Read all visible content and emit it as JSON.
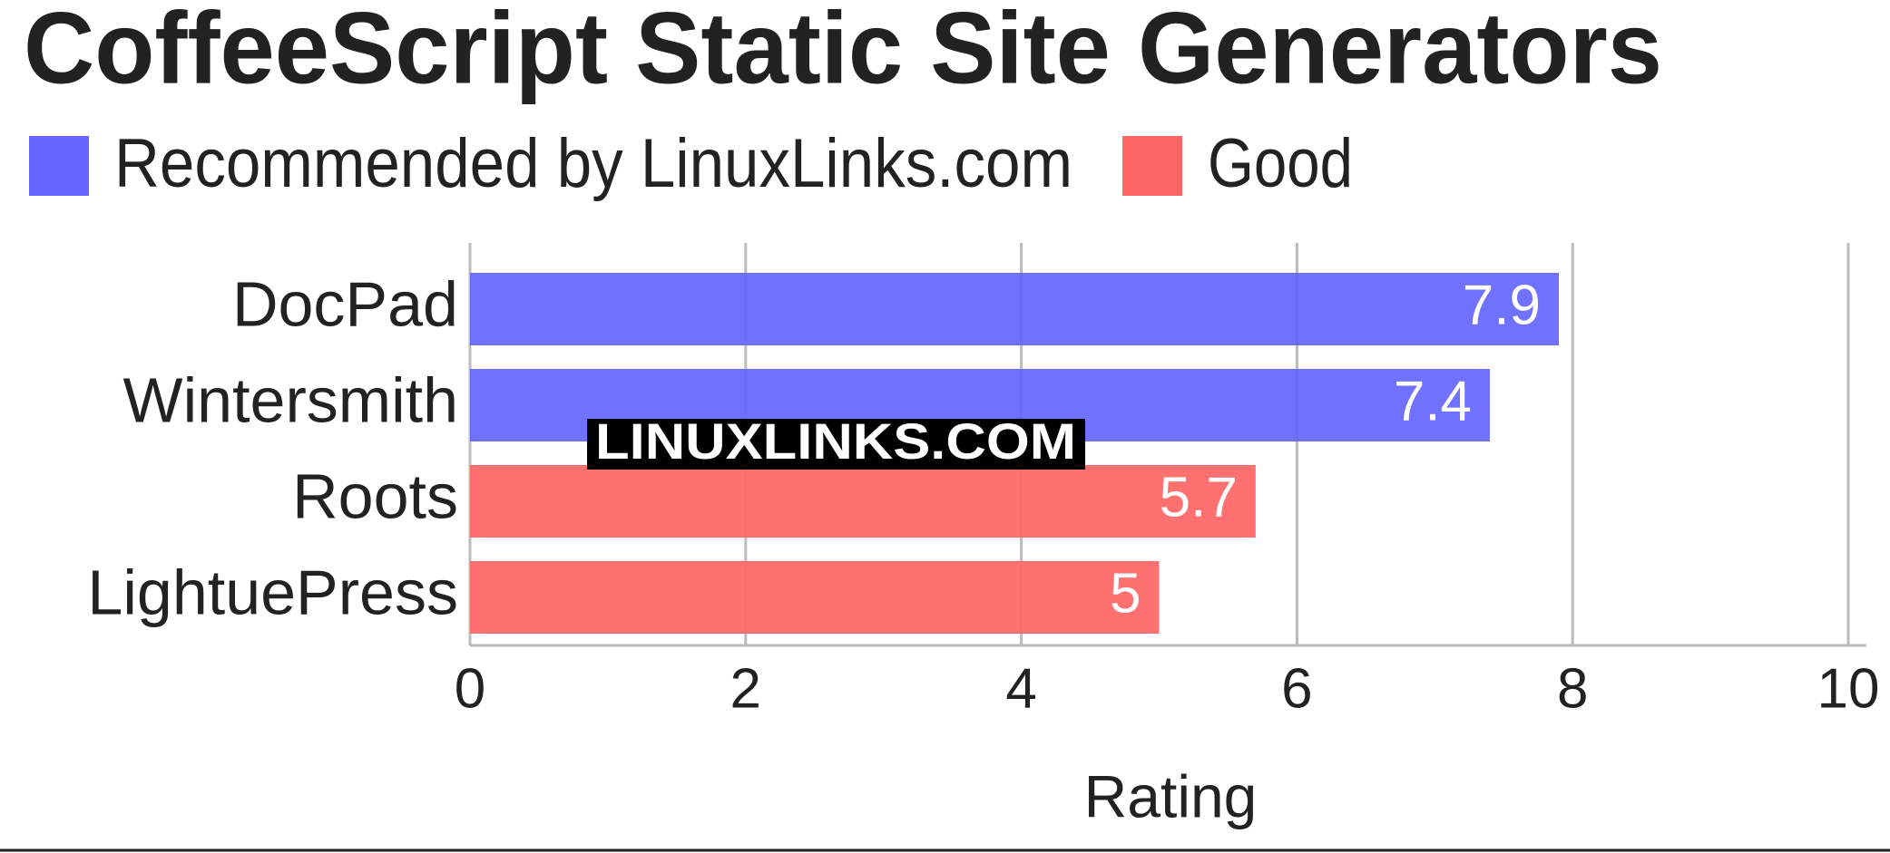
{
  "chart_data": {
    "type": "bar",
    "orientation": "horizontal",
    "title": "CoffeeScript Static Site Generators",
    "categories": [
      "DocPad",
      "Wintersmith",
      "Roots",
      "LightuePress"
    ],
    "series": [
      {
        "name": "Recommended by LinuxLinks.com",
        "color": "#6666ff",
        "values": [
          7.9,
          7.4,
          null,
          null
        ]
      },
      {
        "name": "Good",
        "color": "#ff6666",
        "values": [
          null,
          null,
          5.7,
          5
        ]
      }
    ],
    "xlabel": "Rating",
    "xlim": [
      0,
      10
    ],
    "xticks": [
      0,
      2,
      4,
      6,
      8,
      10
    ],
    "grid": true,
    "watermark": "LINUXLINKS.COM"
  }
}
